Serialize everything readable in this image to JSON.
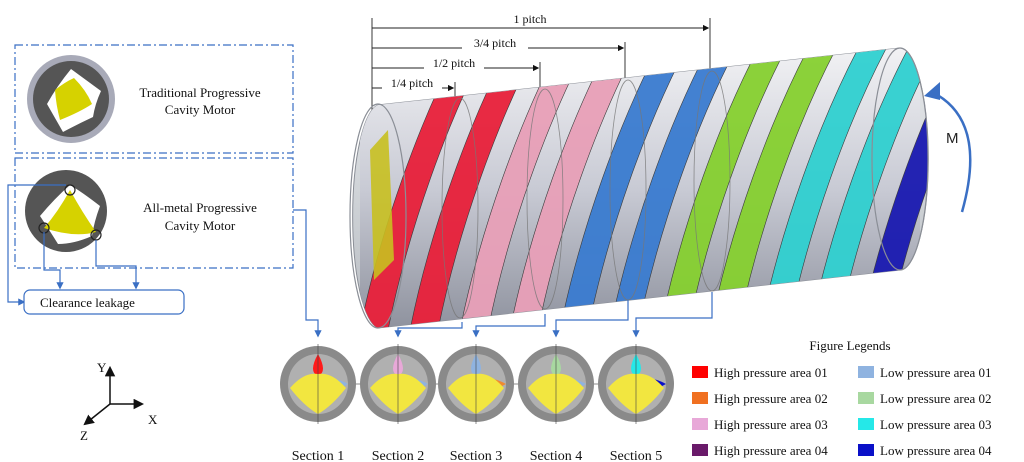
{
  "diagram": {
    "pitch_labels": [
      "1 pitch",
      "3/4 pitch",
      "1/2 pitch",
      "1/4 pitch"
    ],
    "rotation_label": "M",
    "motor_boxes": [
      {
        "line1": "Traditional Progressive",
        "line2": "Cavity Motor"
      },
      {
        "line1": "All-metal Progressive",
        "line2": "Cavity Motor"
      }
    ],
    "leakage_label": "Clearance leakage",
    "axes": {
      "x": "X",
      "y": "Y",
      "z": "Z"
    },
    "sections": [
      {
        "label": "Section 1",
        "high_color": "#ff1a1a",
        "low_color": "#8fb3e0"
      },
      {
        "label": "Section 2",
        "high_color": "#e8a8d8",
        "low_color": "#8fb3e0"
      },
      {
        "label": "Section 3",
        "high_color": "#8fb3e0",
        "low_color": "#f08a30"
      },
      {
        "label": "Section 4",
        "high_color": "#a8d8a0",
        "low_color": "#8fb3e0"
      },
      {
        "label": "Section 5",
        "high_color": "#25e8e8",
        "low_color": "#0a10c8"
      }
    ],
    "legend": {
      "title": "Figure Legends",
      "items": [
        {
          "label": "High pressure area 01",
          "color": "#ff0000"
        },
        {
          "label": "Low pressure area 01",
          "color": "#8fb3e0"
        },
        {
          "label": "High pressure area 02",
          "color": "#f07020"
        },
        {
          "label": "Low  pressure area 02",
          "color": "#a8d8a0"
        },
        {
          "label": "High pressure area 03",
          "color": "#e8a8d8"
        },
        {
          "label": "Low  pressure area 03",
          "color": "#25e8e8"
        },
        {
          "label": "High pressure area 04",
          "color": "#6a1a6a"
        },
        {
          "label": "Low  pressure area 04",
          "color": "#0a10c8"
        }
      ]
    },
    "helix_colors": [
      "#e8203a",
      "#e8a0b8",
      "#3a7cd0",
      "#86d030",
      "#30d0d0",
      "#1a1ab0"
    ]
  }
}
